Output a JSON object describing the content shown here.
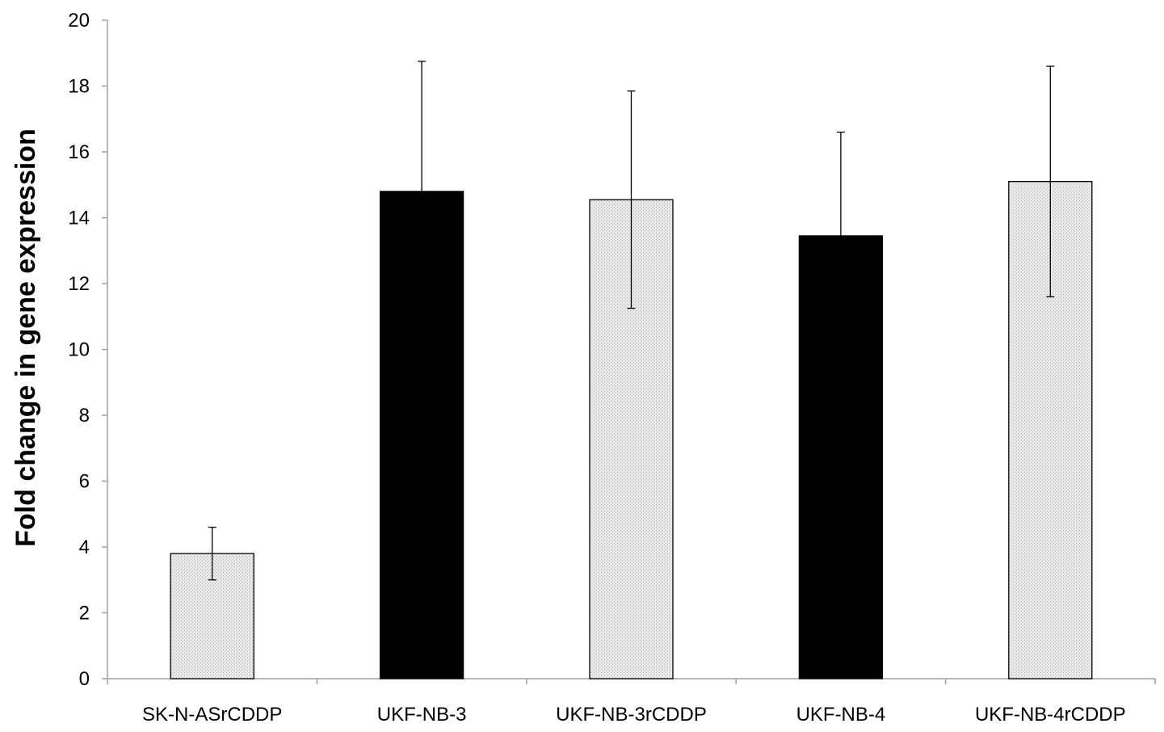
{
  "chart_data": {
    "type": "bar",
    "title": "",
    "xlabel": "",
    "ylabel": "Fold change in gene expression",
    "ylim": [
      0,
      20
    ],
    "yticks": [
      0,
      2,
      4,
      6,
      8,
      10,
      12,
      14,
      16,
      18,
      20
    ],
    "categories": [
      "SK-N-ASrCDDP",
      "UKF-NB-3",
      "UKF-NB-3rCDDP",
      "UKF-NB-4",
      "UKF-NB-4rCDDP"
    ],
    "values": [
      3.8,
      14.8,
      14.55,
      13.45,
      15.1
    ],
    "error": [
      0.8,
      3.95,
      3.3,
      3.15,
      3.5
    ],
    "bar_colors": [
      "#e6e6e6",
      "#000000",
      "#e6e6e6",
      "#000000",
      "#e6e6e6"
    ],
    "grid": false,
    "legend": "none"
  }
}
